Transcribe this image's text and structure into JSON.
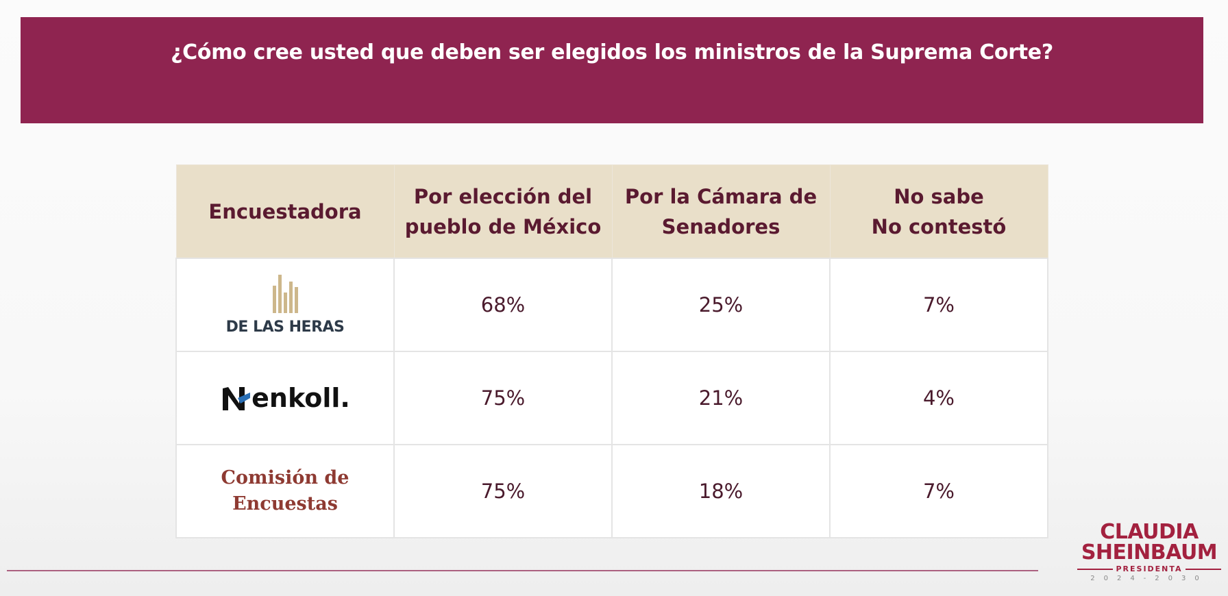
{
  "title": "¿Cómo cree usted que deben ser elegidos los ministros de la Suprema Corte?",
  "table": {
    "headers": [
      "Encuestadora",
      "Por elección del pueblo de México",
      "Por la Cámara de Senadores",
      "No sabe No contestó"
    ],
    "header_lines": [
      [
        "Encuestadora"
      ],
      [
        "Por elección del",
        "pueblo de México"
      ],
      [
        "Por la Cámara de",
        "Senadores"
      ],
      [
        "No sabe",
        "No contestó"
      ]
    ],
    "rows": [
      {
        "pollster": "DE LAS HERAS",
        "values": [
          "68%",
          "25%",
          "7%"
        ]
      },
      {
        "pollster": "enkoll.",
        "values": [
          "75%",
          "21%",
          "4%"
        ]
      },
      {
        "pollster": "Comisión de Encuestas",
        "pollster_lines": [
          "Comisión de",
          "Encuestas"
        ],
        "values": [
          "75%",
          "18%",
          "7%"
        ]
      }
    ]
  },
  "logo": {
    "line1": "CLAUDIA",
    "line2": "SHEINBAUM",
    "line3": "PRESIDENTA",
    "line4": "2024-2030"
  },
  "colors": {
    "banner": "#8f2450",
    "header_bg": "#e9dfc9",
    "accent": "#a3213f"
  }
}
